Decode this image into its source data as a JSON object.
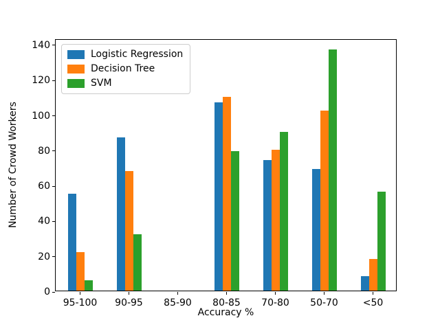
{
  "chart_data": {
    "type": "bar",
    "title": "",
    "categories": [
      "95-100",
      "90-95",
      "85-90",
      "80-85",
      "70-80",
      "50-70",
      "<50"
    ],
    "series": [
      {
        "name": "Logistic Regression",
        "color": "#1f77b4",
        "values": [
          55,
          87,
          0,
          107,
          74,
          69,
          8
        ]
      },
      {
        "name": "Decision Tree",
        "color": "#ff7f0e",
        "values": [
          22,
          68,
          0,
          110,
          80,
          102,
          18
        ]
      },
      {
        "name": "SVM",
        "color": "#2ca02c",
        "values": [
          6,
          32,
          0,
          79,
          90,
          137,
          56
        ]
      }
    ],
    "xlabel": "Accuracy %",
    "ylabel": "Number of Crowd Workers",
    "ylim": [
      0,
      143.1
    ],
    "yticks": [
      0,
      20,
      40,
      60,
      80,
      100,
      120,
      140
    ],
    "legend_position": "upper left",
    "grid": false,
    "axis_color": "#000000"
  }
}
